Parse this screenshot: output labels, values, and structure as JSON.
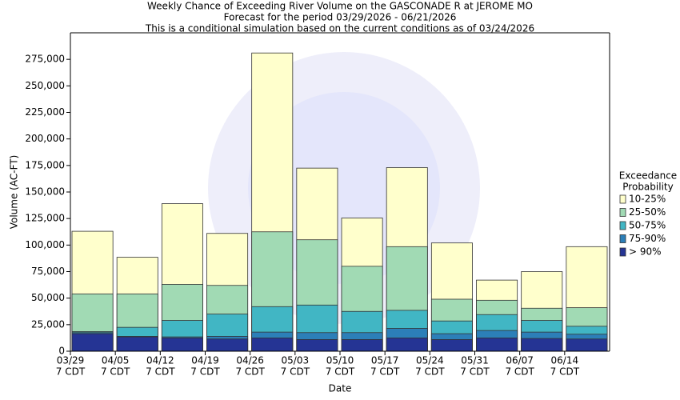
{
  "chart_data": {
    "type": "bar",
    "title": [
      "Weekly Chance of Exceeding River Volume on the GASCONADE R at JEROME MO",
      "Forecast for the period 03/29/2026 - 06/21/2026",
      "This is a conditional simulation based on the current conditions as of 03/24/2026"
    ],
    "x_label": "Date",
    "y_label": "Volume (AC-FT)",
    "categories": [
      "03/29",
      "04/05",
      "04/12",
      "04/19",
      "04/26",
      "05/03",
      "05/10",
      "05/17",
      "05/24",
      "05/31",
      "06/07",
      "06/14"
    ],
    "category_sublabels": [
      "7 CDT",
      "7 CDT",
      "7 CDT",
      "7 CDT",
      "7 CDT",
      "7 CDT",
      "7 CDT",
      "7 CDT",
      "7 CDT",
      "7 CDT",
      "7 CDT",
      "7 CDT"
    ],
    "legend_title": [
      "Exceedance",
      "Probability"
    ],
    "legend_position": "right",
    "series": [
      {
        "name": "10-25%",
        "color": "#ffffcc",
        "values": [
          113000,
          88500,
          139000,
          111000,
          281000,
          172500,
          125500,
          173000,
          102000,
          67000,
          75000,
          98500
        ]
      },
      {
        "name": "25-50%",
        "color": "#a1dab4",
        "values": [
          54000,
          54000,
          63000,
          62000,
          112500,
          105000,
          80000,
          98500,
          49000,
          48000,
          40500,
          41000
        ]
      },
      {
        "name": "50-75%",
        "color": "#41b6c4",
        "values": [
          18500,
          22500,
          29000,
          35000,
          42000,
          43500,
          37500,
          38500,
          28500,
          34500,
          29000,
          23500
        ]
      },
      {
        "name": "75-90%",
        "color": "#2c7fb8",
        "values": [
          17500,
          14000,
          13500,
          14000,
          18000,
          17500,
          17500,
          21500,
          16500,
          19500,
          18000,
          16000
        ]
      },
      {
        "name": "> 90%",
        "color": "#253494",
        "values": [
          16500,
          13500,
          12500,
          11500,
          12500,
          11000,
          11000,
          12500,
          11000,
          12500,
          12000,
          11500
        ]
      }
    ],
    "ylim": [
      0,
      300000
    ],
    "yticks": [
      0,
      {
        "value": 25000,
        "label": "25,000"
      },
      {
        "value": 50000,
        "label": "50,000"
      },
      {
        "value": 75000,
        "label": "75,000"
      },
      {
        "value": 100000,
        "label": "100,000"
      },
      {
        "value": 125000,
        "label": "125,000"
      },
      {
        "value": 150000,
        "label": "150,000"
      },
      {
        "value": 175000,
        "label": "175,000"
      },
      {
        "value": 200000,
        "label": "200,000"
      },
      {
        "value": 225000,
        "label": "225,000"
      },
      {
        "value": 250000,
        "label": "250,000"
      },
      {
        "value": 275000,
        "label": "275,000"
      }
    ],
    "grid": false
  }
}
